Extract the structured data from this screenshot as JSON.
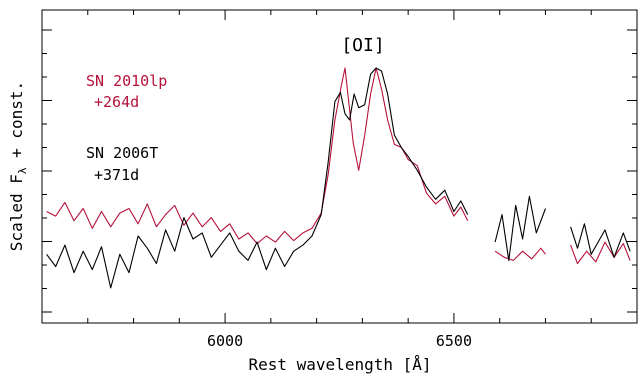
{
  "chart_data": {
    "type": "line",
    "title": "",
    "xlabel": "Rest wavelength [Å]",
    "ylabel_main": "Scaled F",
    "ylabel_sub": "λ",
    "ylabel_tail": " + const.",
    "xlim": [
      5600,
      6900
    ],
    "x_ticks": [
      6000,
      6500
    ],
    "annotation": "[OI]",
    "legend_placement": "upper-left",
    "series": [
      {
        "name": "SN 2010lp",
        "label_line1": "SN 2010lp",
        "label_line2": "+264d",
        "color": "#b5123a",
        "points": [
          [
            5610,
            0.28
          ],
          [
            5630,
            0.25
          ],
          [
            5650,
            0.34
          ],
          [
            5670,
            0.22
          ],
          [
            5690,
            0.3
          ],
          [
            5710,
            0.17
          ],
          [
            5730,
            0.28
          ],
          [
            5750,
            0.18
          ],
          [
            5770,
            0.27
          ],
          [
            5790,
            0.3
          ],
          [
            5810,
            0.2
          ],
          [
            5830,
            0.33
          ],
          [
            5850,
            0.18
          ],
          [
            5870,
            0.26
          ],
          [
            5890,
            0.32
          ],
          [
            5910,
            0.19
          ],
          [
            5930,
            0.27
          ],
          [
            5950,
            0.18
          ],
          [
            5970,
            0.24
          ],
          [
            5990,
            0.15
          ],
          [
            6010,
            0.2
          ],
          [
            6030,
            0.1
          ],
          [
            6050,
            0.14
          ],
          [
            6070,
            0.07
          ],
          [
            6090,
            0.12
          ],
          [
            6110,
            0.08
          ],
          [
            6130,
            0.15
          ],
          [
            6150,
            0.09
          ],
          [
            6170,
            0.14
          ],
          [
            6190,
            0.17
          ],
          [
            6210,
            0.27
          ],
          [
            6225,
            0.52
          ],
          [
            6240,
            0.88
          ],
          [
            6255,
            1.12
          ],
          [
            6262,
            1.22
          ],
          [
            6270,
            1.0
          ],
          [
            6280,
            0.73
          ],
          [
            6292,
            0.55
          ],
          [
            6305,
            0.78
          ],
          [
            6318,
            1.05
          ],
          [
            6330,
            1.22
          ],
          [
            6342,
            1.08
          ],
          [
            6355,
            0.88
          ],
          [
            6370,
            0.72
          ],
          [
            6385,
            0.7
          ],
          [
            6400,
            0.62
          ],
          [
            6420,
            0.58
          ],
          [
            6440,
            0.4
          ],
          [
            6460,
            0.33
          ],
          [
            6480,
            0.38
          ],
          [
            6500,
            0.25
          ],
          [
            6515,
            0.31
          ],
          [
            6530,
            0.22
          ],
          null,
          [
            6590,
            0.02
          ],
          [
            6610,
            -0.02
          ],
          [
            6630,
            -0.04
          ],
          [
            6650,
            0.02
          ],
          [
            6670,
            -0.03
          ],
          [
            6690,
            0.04
          ],
          [
            6700,
            0.0
          ],
          null,
          [
            6755,
            0.06
          ],
          [
            6770,
            -0.06
          ],
          [
            6790,
            0.02
          ],
          [
            6810,
            -0.05
          ],
          [
            6830,
            0.08
          ],
          [
            6850,
            -0.02
          ],
          [
            6870,
            0.07
          ],
          [
            6885,
            -0.04
          ]
        ]
      },
      {
        "name": "SN 2006T",
        "label_line1": "SN 2006T",
        "label_line2": "+371d",
        "color": "#000000",
        "points": [
          [
            5610,
            0.0
          ],
          [
            5630,
            -0.08
          ],
          [
            5650,
            0.06
          ],
          [
            5670,
            -0.12
          ],
          [
            5690,
            0.02
          ],
          [
            5710,
            -0.1
          ],
          [
            5730,
            0.05
          ],
          [
            5750,
            -0.22
          ],
          [
            5770,
            0.0
          ],
          [
            5790,
            -0.12
          ],
          [
            5810,
            0.12
          ],
          [
            5830,
            0.04
          ],
          [
            5850,
            -0.06
          ],
          [
            5870,
            0.16
          ],
          [
            5890,
            0.02
          ],
          [
            5910,
            0.24
          ],
          [
            5930,
            0.1
          ],
          [
            5950,
            0.14
          ],
          [
            5970,
            -0.02
          ],
          [
            5990,
            0.06
          ],
          [
            6010,
            0.14
          ],
          [
            6030,
            0.02
          ],
          [
            6050,
            -0.04
          ],
          [
            6070,
            0.08
          ],
          [
            6090,
            -0.1
          ],
          [
            6110,
            0.04
          ],
          [
            6130,
            -0.08
          ],
          [
            6150,
            0.02
          ],
          [
            6170,
            0.06
          ],
          [
            6190,
            0.12
          ],
          [
            6210,
            0.26
          ],
          [
            6225,
            0.6
          ],
          [
            6240,
            1.0
          ],
          [
            6252,
            1.06
          ],
          [
            6262,
            0.92
          ],
          [
            6272,
            0.88
          ],
          [
            6282,
            1.05
          ],
          [
            6292,
            0.96
          ],
          [
            6305,
            0.98
          ],
          [
            6318,
            1.18
          ],
          [
            6330,
            1.22
          ],
          [
            6342,
            1.2
          ],
          [
            6355,
            1.05
          ],
          [
            6370,
            0.78
          ],
          [
            6385,
            0.7
          ],
          [
            6400,
            0.64
          ],
          [
            6420,
            0.55
          ],
          [
            6440,
            0.44
          ],
          [
            6460,
            0.36
          ],
          [
            6480,
            0.42
          ],
          [
            6500,
            0.28
          ],
          [
            6515,
            0.35
          ],
          [
            6530,
            0.26
          ],
          null,
          [
            6590,
            0.08
          ],
          [
            6605,
            0.26
          ],
          [
            6620,
            -0.04
          ],
          [
            6635,
            0.32
          ],
          [
            6650,
            0.1
          ],
          [
            6665,
            0.38
          ],
          [
            6680,
            0.14
          ],
          [
            6700,
            0.3
          ],
          null,
          [
            6755,
            0.18
          ],
          [
            6770,
            0.04
          ],
          [
            6785,
            0.2
          ],
          [
            6800,
            0.0
          ],
          [
            6815,
            0.08
          ],
          [
            6830,
            0.16
          ],
          [
            6850,
            -0.02
          ],
          [
            6870,
            0.14
          ],
          [
            6885,
            0.02
          ]
        ]
      }
    ],
    "grid": false
  }
}
